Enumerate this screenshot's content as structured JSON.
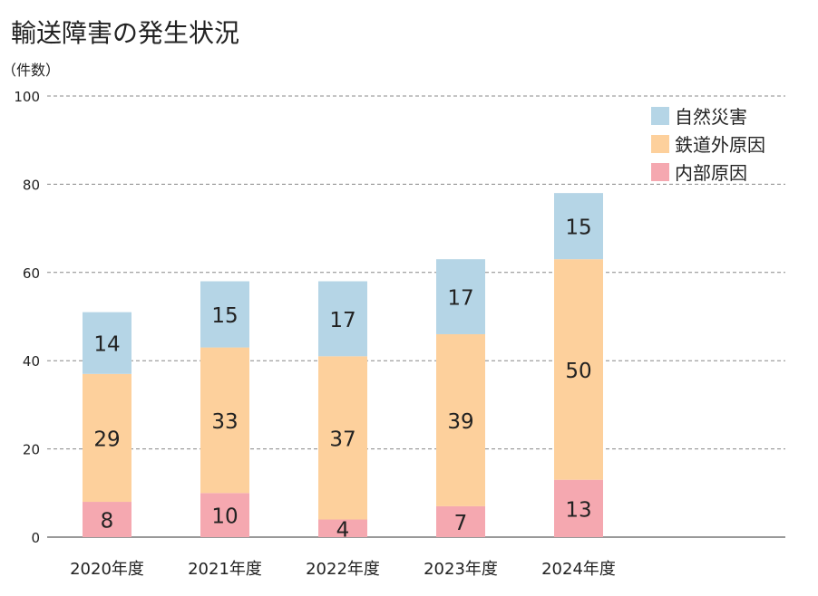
{
  "chart_data": {
    "type": "bar",
    "stacked": true,
    "title": "輸送障害の発生状況",
    "ylabel": "（件数）",
    "xlabel": "",
    "ylim": [
      0,
      100
    ],
    "yticks": [
      0,
      20,
      40,
      60,
      80,
      100
    ],
    "grid": true,
    "legend_position": "top-right",
    "categories": [
      "2020年度",
      "2021年度",
      "2022年度",
      "2023年度",
      "2024年度"
    ],
    "series": [
      {
        "name": "内部原因",
        "color": "#f5a8b0",
        "values": [
          8,
          10,
          4,
          7,
          13
        ]
      },
      {
        "name": "鉄道外原因",
        "color": "#fdd09c",
        "values": [
          29,
          33,
          37,
          39,
          50
        ]
      },
      {
        "name": "自然災害",
        "color": "#b5d5e6",
        "values": [
          14,
          15,
          17,
          17,
          15
        ]
      }
    ],
    "legend_order": [
      2,
      1,
      0
    ]
  }
}
